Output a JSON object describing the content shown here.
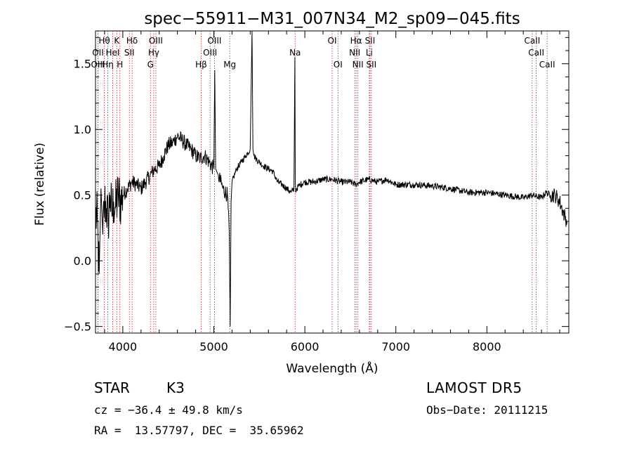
{
  "chart_data": {
    "type": "line",
    "title": "spec−55911−M31_007N34_M2_sp09−045.fits",
    "xlabel": "Wavelength (Å)",
    "ylabel": "Flux (relative)",
    "xlim": [
      3700,
      8900
    ],
    "ylim": [
      -0.55,
      1.75
    ],
    "xticks": [
      4000,
      5000,
      6000,
      7000,
      8000
    ],
    "xtick_labels": [
      "4000",
      "5000",
      "6000",
      "7000",
      "8000"
    ],
    "yticks": [
      -0.5,
      0.0,
      0.5,
      1.0,
      1.5
    ],
    "ytick_labels": [
      "−0.5",
      "0.0",
      "0.5",
      "1.0",
      "1.5"
    ],
    "grid": false,
    "series": [
      {
        "x": [
          3700,
          3720,
          3740,
          3760,
          3780,
          3800,
          3820,
          3840,
          3860,
          3880,
          3900,
          3920,
          3950,
          3980,
          4000,
          4050,
          4100,
          4150,
          4200,
          4250,
          4300,
          4350,
          4400,
          4450,
          4500,
          4550,
          4600,
          4650,
          4700,
          4750,
          4800,
          4850,
          4900,
          4950,
          5000,
          5010,
          5020,
          5050,
          5100,
          5150,
          5170,
          5180,
          5190,
          5200,
          5250,
          5300,
          5350,
          5400,
          5420,
          5430,
          5440,
          5460,
          5500,
          5550,
          5600,
          5650,
          5700,
          5750,
          5800,
          5850,
          5880,
          5890,
          5895,
          5900,
          5910,
          5950,
          6000,
          6100,
          6200,
          6300,
          6400,
          6500,
          6560,
          6600,
          6700,
          6800,
          6900,
          7000,
          7200,
          7400,
          7600,
          7800,
          8000,
          8200,
          8400,
          8500,
          8600,
          8650,
          8700,
          8750,
          8800,
          8850,
          8880
        ],
        "y": [
          0.35,
          0.3,
          -0.1,
          0.55,
          0.2,
          0.45,
          0.4,
          0.3,
          0.5,
          0.35,
          0.45,
          0.4,
          0.5,
          0.45,
          0.5,
          0.55,
          0.6,
          0.58,
          0.55,
          0.6,
          0.65,
          0.7,
          0.72,
          0.8,
          0.88,
          0.9,
          0.95,
          0.92,
          0.88,
          0.85,
          0.8,
          0.78,
          0.8,
          0.75,
          0.7,
          1.45,
          0.7,
          0.65,
          0.55,
          0.5,
          0.2,
          -0.5,
          0.45,
          0.6,
          0.7,
          0.75,
          0.8,
          0.85,
          1.8,
          0.85,
          0.8,
          0.78,
          0.75,
          0.72,
          0.7,
          0.68,
          0.6,
          0.58,
          0.55,
          0.52,
          0.55,
          1.55,
          0.6,
          0.52,
          0.55,
          0.58,
          0.6,
          0.6,
          0.62,
          0.62,
          0.6,
          0.6,
          0.58,
          0.6,
          0.62,
          0.6,
          0.62,
          0.58,
          0.58,
          0.57,
          0.55,
          0.52,
          0.52,
          0.5,
          0.48,
          0.5,
          0.48,
          0.52,
          0.5,
          0.5,
          0.45,
          0.35,
          0.3
        ]
      }
    ],
    "lines": [
      {
        "label": "Hθ",
        "x": 3797,
        "row": 0
      },
      {
        "label": "OII",
        "x": 3727,
        "row": 1
      },
      {
        "label": "OIII",
        "x": 3727,
        "row": 2
      },
      {
        "label": "K",
        "x": 3934,
        "row": 0
      },
      {
        "label": "HeI",
        "x": 3889,
        "row": 1
      },
      {
        "label": "Hη",
        "x": 3835,
        "row": 2
      },
      {
        "label": "Hδ",
        "x": 4102,
        "row": 0
      },
      {
        "label": "SII",
        "x": 4072,
        "row": 1
      },
      {
        "label": "H",
        "x": 3968,
        "row": 2
      },
      {
        "label": "OIII",
        "x": 4363,
        "row": 0
      },
      {
        "label": "Hγ",
        "x": 4340,
        "row": 1
      },
      {
        "label": "G",
        "x": 4304,
        "row": 2
      },
      {
        "label": "OIII",
        "x": 5007,
        "row": 0
      },
      {
        "label": "OIII",
        "x": 4959,
        "row": 1
      },
      {
        "label": "Hβ",
        "x": 4861,
        "row": 2
      },
      {
        "label": "Mg",
        "x": 5175,
        "row": 2
      },
      {
        "label": "Na",
        "x": 5893,
        "row": 1
      },
      {
        "label": "OI",
        "x": 6300,
        "row": 0
      },
      {
        "label": "OI",
        "x": 6364,
        "row": 2
      },
      {
        "label": "Hα",
        "x": 6563,
        "row": 0
      },
      {
        "label": "SII",
        "x": 6716,
        "row": 0
      },
      {
        "label": "NII",
        "x": 6548,
        "row": 1
      },
      {
        "label": "Li",
        "x": 6708,
        "row": 1
      },
      {
        "label": "NII",
        "x": 6583,
        "row": 2
      },
      {
        "label": "SII",
        "x": 6731,
        "row": 2
      },
      {
        "label": "CaII",
        "x": 8498,
        "row": 0
      },
      {
        "label": "CaII",
        "x": 8542,
        "row": 1
      },
      {
        "label": "CaII",
        "x": 8662,
        "row": 2
      }
    ]
  },
  "info": {
    "object_class": "STAR",
    "subclass": "K3",
    "survey": "LAMOST DR5",
    "redshift": "cz = −36.4 ± 49.8 km/s",
    "obs_date": "Obs−Date: 20111215",
    "coords": "RA =  13.57797, DEC =  35.65962"
  }
}
